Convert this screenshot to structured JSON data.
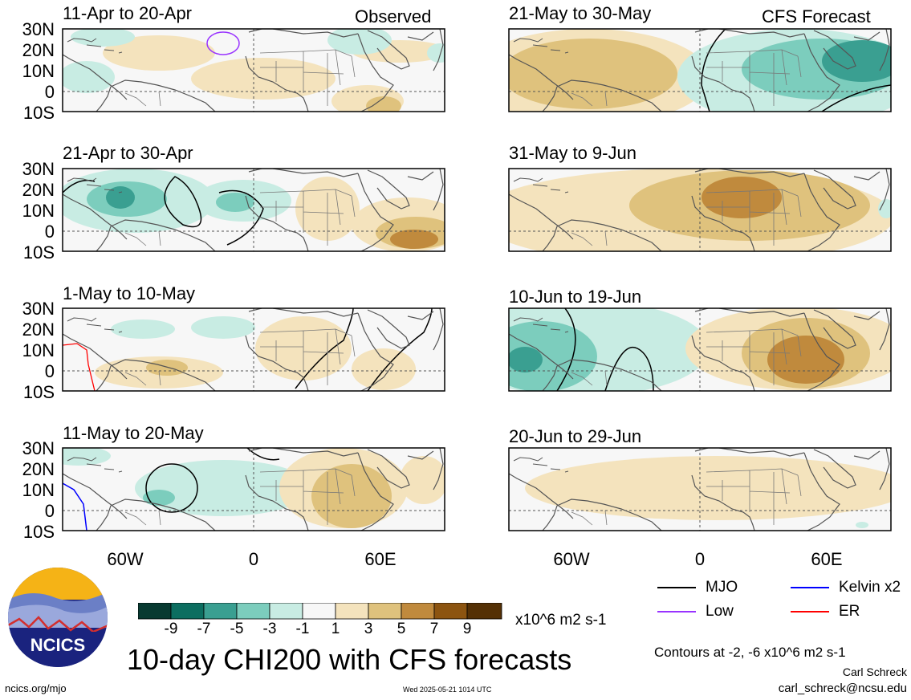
{
  "panels": [
    {
      "title": "11-Apr to 20-Apr",
      "tag": "Observed"
    },
    {
      "title": "21-Apr to 30-Apr",
      "tag": ""
    },
    {
      "title": "1-May to 10-May",
      "tag": ""
    },
    {
      "title": "11-May to 20-May",
      "tag": ""
    },
    {
      "title": "21-May to 30-May",
      "tag": "CFS Forecast"
    },
    {
      "title": "31-May to 9-Jun",
      "tag": ""
    },
    {
      "title": "10-Jun to 19-Jun",
      "tag": ""
    },
    {
      "title": "20-Jun to 29-Jun",
      "tag": ""
    }
  ],
  "lat_labels": [
    "30N",
    "20N",
    "10N",
    "0",
    "10S"
  ],
  "lon_labels": [
    "60W",
    "0",
    "60E"
  ],
  "colorbar": {
    "colors": [
      "#083a31",
      "#0c6e60",
      "#3a9f91",
      "#7ccdbd",
      "#c8ece3",
      "#f7f7f7",
      "#f4e3bd",
      "#dfc27d",
      "#c08a3d",
      "#8c5410",
      "#543005"
    ],
    "labels": [
      "-9",
      "-7",
      "-5",
      "-3",
      "-1",
      "1",
      "3",
      "5",
      "7",
      "9"
    ],
    "units": "x10^6 m2 s-1"
  },
  "title": "10-day CHI200 with CFS forecasts",
  "logo": {
    "text": "NCICS"
  },
  "legend": [
    {
      "name": "MJO",
      "color": "#000000"
    },
    {
      "name": "Kelvin x2",
      "color": "#0000ff"
    },
    {
      "name": "Low",
      "color": "#9933ff"
    },
    {
      "name": "ER",
      "color": "#ff0000"
    }
  ],
  "contours_note": "Contours at -2, -6 x10^6 m2 s-1",
  "author": "Carl Schreck",
  "email": "carl_schreck@ncsu.edu",
  "url": "ncics.org/mjo",
  "timestamp": "Wed 2025-05-21 1014 UTC"
}
